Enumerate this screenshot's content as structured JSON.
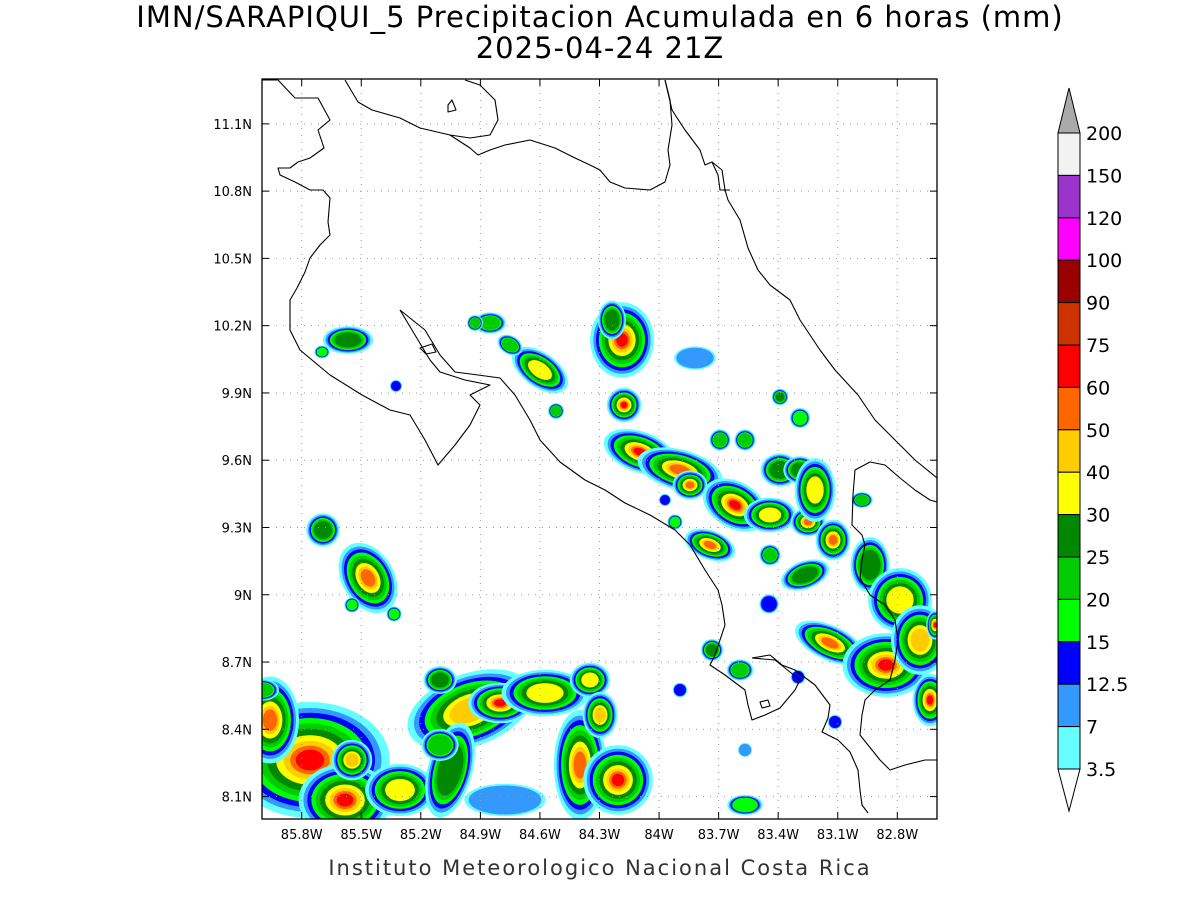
{
  "title": {
    "line1": "IMN/SARAPIQUI_5 Precipitacion Acumulada en 6 horas (mm)",
    "line2": "2025-04-24 21Z"
  },
  "credit": "Instituto Meteorologico Nacional Costa Rica",
  "map": {
    "lon_range": [
      -86.0,
      -82.6
    ],
    "lat_range": [
      8.0,
      11.3
    ],
    "lon_ticks": [
      {
        "value": -85.8,
        "label": "85.8W"
      },
      {
        "value": -85.5,
        "label": "85.5W"
      },
      {
        "value": -85.2,
        "label": "85.2W"
      },
      {
        "value": -84.9,
        "label": "84.9W"
      },
      {
        "value": -84.6,
        "label": "84.6W"
      },
      {
        "value": -84.3,
        "label": "84.3W"
      },
      {
        "value": -84.0,
        "label": "84W"
      },
      {
        "value": -83.7,
        "label": "83.7W"
      },
      {
        "value": -83.4,
        "label": "83.4W"
      },
      {
        "value": -83.1,
        "label": "83.1W"
      },
      {
        "value": -82.8,
        "label": "82.8W"
      }
    ],
    "lat_ticks": [
      {
        "value": 11.1,
        "label": "11.1N"
      },
      {
        "value": 10.8,
        "label": "10.8N"
      },
      {
        "value": 10.5,
        "label": "10.5N"
      },
      {
        "value": 10.2,
        "label": "10.2N"
      },
      {
        "value": 9.9,
        "label": "9.9N"
      },
      {
        "value": 9.6,
        "label": "9.6N"
      },
      {
        "value": 9.3,
        "label": "9.3N"
      },
      {
        "value": 9.0,
        "label": "9N"
      },
      {
        "value": 8.7,
        "label": "8.7N"
      },
      {
        "value": 8.4,
        "label": "8.4N"
      },
      {
        "value": 8.1,
        "label": "8.1N"
      }
    ],
    "grid": true,
    "units": "mm"
  },
  "colorbar": {
    "levels": [
      "3.5",
      "7",
      "12.5",
      "15",
      "20",
      "25",
      "30",
      "40",
      "50",
      "60",
      "75",
      "90",
      "100",
      "120",
      "150",
      "200"
    ],
    "colors": [
      "#66ffff",
      "#3399ff",
      "#0000ff",
      "#00ff00",
      "#00cc00",
      "#008800",
      "#ffff00",
      "#ffcc00",
      "#ff6600",
      "#ff0000",
      "#cc3300",
      "#990000",
      "#ff00ff",
      "#9933cc",
      "#f2f2f2",
      "#aaaaaa"
    ]
  }
}
